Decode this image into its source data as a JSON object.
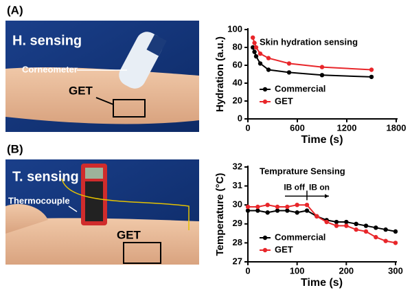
{
  "panels": {
    "a": {
      "label": "(A)",
      "mode": "H. sensing",
      "device": "Corneometer",
      "sensor": "GET"
    },
    "b": {
      "label": "(B)",
      "mode": "T. sensing",
      "device": "Thermocouple",
      "sensor": "GET"
    }
  },
  "chart_data": [
    {
      "type": "line",
      "title": "Skin hydration sensing",
      "x_label": "Time (s)",
      "y_label": "Hydration (a.u.)",
      "x": [
        60,
        80,
        100,
        150,
        250,
        500,
        900,
        1500
      ],
      "series": [
        {
          "name": "Commercial",
          "color": "#000000",
          "values": [
            80,
            75,
            70,
            62,
            55,
            52,
            49,
            47
          ]
        },
        {
          "name": "GET",
          "color": "#e8262a",
          "values": [
            91,
            85,
            80,
            73,
            68,
            62,
            58,
            55
          ]
        }
      ],
      "xlim": [
        0,
        1800
      ],
      "xticks": [
        0,
        600,
        1200,
        1800
      ],
      "ylim": [
        0,
        100
      ],
      "yticks": [
        0,
        20,
        40,
        60,
        80,
        100
      ]
    },
    {
      "type": "line",
      "title": "Temprature Sensing",
      "x_label": "Time (s)",
      "y_label": "Temperature (°C)",
      "annotations": [
        "IB off",
        "IB on"
      ],
      "x": [
        0,
        20,
        40,
        60,
        80,
        100,
        120,
        140,
        160,
        180,
        200,
        220,
        240,
        260,
        280,
        300
      ],
      "series": [
        {
          "name": "Commercial",
          "color": "#000000",
          "values": [
            29.7,
            29.7,
            29.6,
            29.7,
            29.7,
            29.6,
            29.7,
            29.4,
            29.2,
            29.1,
            29.1,
            29.0,
            28.9,
            28.8,
            28.7,
            28.6
          ]
        },
        {
          "name": "GET",
          "color": "#e8262a",
          "values": [
            29.9,
            29.9,
            30.0,
            29.9,
            29.9,
            30.0,
            30.0,
            29.4,
            29.1,
            28.9,
            28.9,
            28.7,
            28.6,
            28.3,
            28.1,
            28.0
          ]
        }
      ],
      "xlim": [
        0,
        300
      ],
      "xticks": [
        0,
        100,
        200,
        300
      ],
      "ylim": [
        27,
        32
      ],
      "yticks": [
        27,
        28,
        29,
        30,
        31,
        32
      ]
    }
  ]
}
